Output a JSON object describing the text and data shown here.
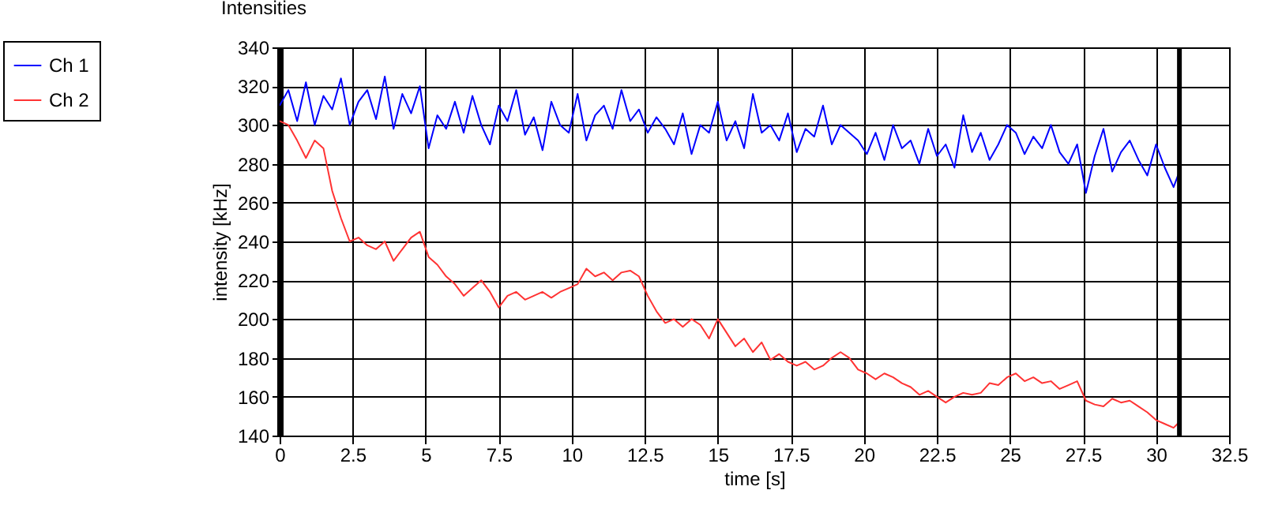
{
  "chart_data": {
    "type": "line",
    "title": "Intensities",
    "xlabel": "time [s]",
    "ylabel": "intensity [kHz]",
    "x": [
      0,
      0.3,
      0.6,
      0.9,
      1.2,
      1.5,
      1.8,
      2.1,
      2.4,
      2.7,
      3.0,
      3.3,
      3.6,
      3.9,
      4.2,
      4.5,
      4.8,
      5.1,
      5.4,
      5.7,
      6.0,
      6.3,
      6.6,
      6.9,
      7.2,
      7.5,
      7.8,
      8.1,
      8.4,
      8.7,
      9.0,
      9.3,
      9.6,
      9.9,
      10.2,
      10.5,
      10.8,
      11.1,
      11.4,
      11.7,
      12.0,
      12.3,
      12.6,
      12.9,
      13.2,
      13.5,
      13.8,
      14.1,
      14.4,
      14.7,
      15.0,
      15.3,
      15.6,
      15.9,
      16.2,
      16.5,
      16.8,
      17.1,
      17.4,
      17.7,
      18.0,
      18.3,
      18.6,
      18.9,
      19.2,
      19.5,
      19.8,
      20.1,
      20.4,
      20.7,
      21.0,
      21.3,
      21.6,
      21.9,
      22.2,
      22.5,
      22.8,
      23.1,
      23.4,
      23.7,
      24.0,
      24.3,
      24.6,
      24.9,
      25.2,
      25.5,
      25.8,
      26.1,
      26.4,
      26.7,
      27.0,
      27.3,
      27.6,
      27.9,
      28.2,
      28.5,
      28.8,
      29.1,
      29.4,
      29.7,
      30.0,
      30.3,
      30.6,
      30.8
    ],
    "series": [
      {
        "name": "Ch 1",
        "color": "#0000ff",
        "values": [
          310,
          318,
          302,
          322,
          300,
          315,
          308,
          324,
          300,
          312,
          318,
          303,
          325,
          298,
          316,
          306,
          320,
          288,
          305,
          298,
          312,
          296,
          315,
          300,
          290,
          310,
          302,
          318,
          295,
          304,
          287,
          312,
          300,
          296,
          316,
          292,
          305,
          310,
          298,
          318,
          302,
          308,
          296,
          304,
          298,
          290,
          306,
          285,
          300,
          296,
          312,
          292,
          302,
          288,
          316,
          296,
          300,
          292,
          306,
          286,
          298,
          294,
          310,
          290,
          300,
          296,
          292,
          285,
          296,
          282,
          300,
          288,
          292,
          280,
          298,
          284,
          290,
          278,
          305,
          286,
          296,
          282,
          290,
          300,
          296,
          285,
          294,
          288,
          300,
          286,
          280,
          290,
          265,
          284,
          298,
          276,
          286,
          292,
          282,
          274,
          290,
          278,
          268,
          276
        ]
      },
      {
        "name": "Ch 2",
        "color": "#ff3333",
        "values": [
          302,
          300,
          292,
          283,
          292,
          288,
          266,
          252,
          240,
          242,
          238,
          236,
          240,
          230,
          236,
          242,
          245,
          232,
          228,
          222,
          218,
          212,
          216,
          220,
          214,
          206,
          212,
          214,
          210,
          212,
          214,
          211,
          214,
          216,
          218,
          226,
          222,
          224,
          220,
          224,
          225,
          222,
          212,
          204,
          198,
          200,
          196,
          200,
          197,
          190,
          200,
          193,
          186,
          190,
          183,
          188,
          179,
          182,
          178,
          176,
          178,
          174,
          176,
          180,
          183,
          180,
          174,
          172,
          169,
          172,
          170,
          167,
          165,
          161,
          163,
          160,
          157,
          160,
          162,
          161,
          162,
          167,
          166,
          170,
          172,
          168,
          170,
          167,
          168,
          164,
          166,
          168,
          158,
          156,
          155,
          159,
          157,
          158,
          155,
          152,
          148,
          146,
          144,
          147
        ]
      }
    ],
    "xlim": [
      0,
      32.5
    ],
    "xticks": [
      0,
      2.5,
      5,
      7.5,
      10,
      12.5,
      15,
      17.5,
      20,
      22.5,
      25,
      27.5,
      30,
      32.5
    ],
    "ylim": [
      140,
      340
    ],
    "yticks": [
      140,
      160,
      180,
      200,
      220,
      240,
      260,
      280,
      300,
      320,
      340
    ],
    "ref_lines": [
      {
        "axis": "x",
        "value": 30.8,
        "color": "#000000"
      }
    ],
    "grid": true,
    "legend": "top left"
  }
}
